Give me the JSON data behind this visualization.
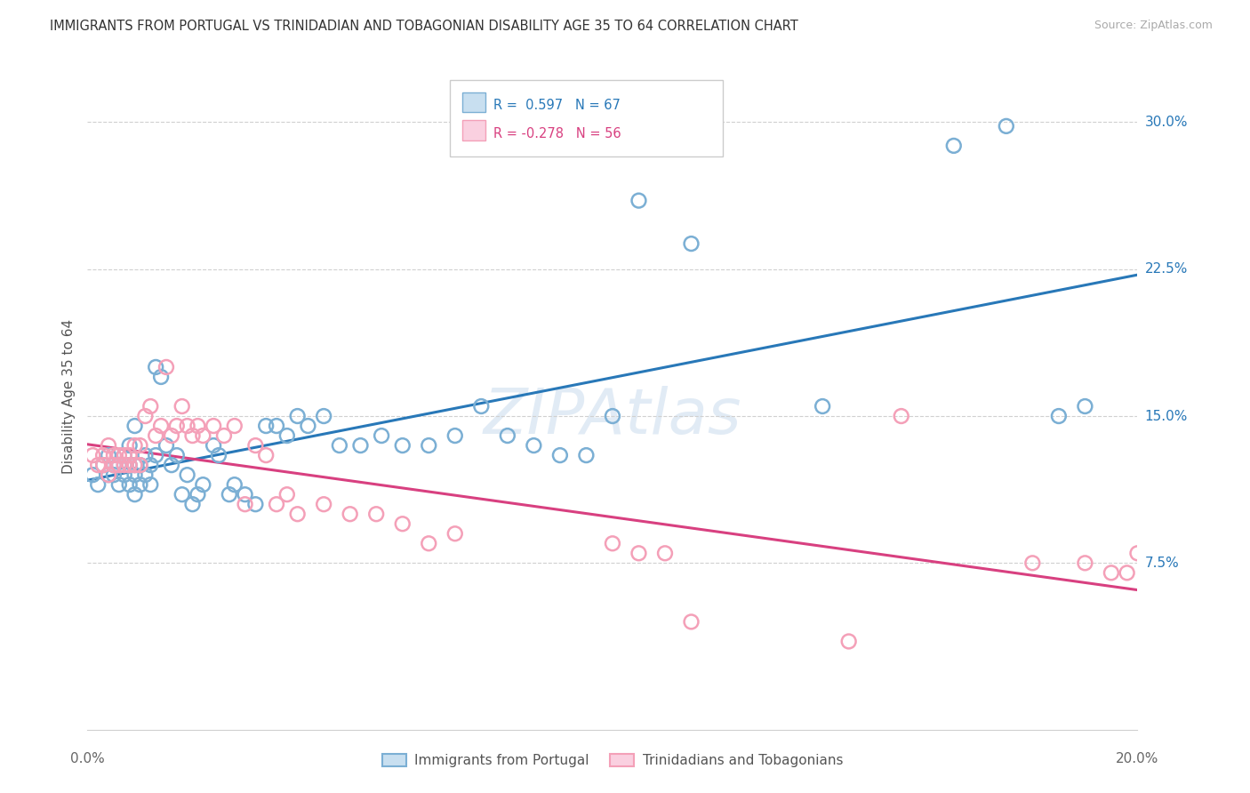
{
  "title": "IMMIGRANTS FROM PORTUGAL VS TRINIDADIAN AND TOBAGONIAN DISABILITY AGE 35 TO 64 CORRELATION CHART",
  "source": "Source: ZipAtlas.com",
  "ylabel": "Disability Age 35 to 64",
  "xlim": [
    0.0,
    0.2
  ],
  "ylim": [
    -0.01,
    0.33
  ],
  "ytick_values": [
    0.075,
    0.15,
    0.225,
    0.3
  ],
  "ytick_labels": [
    "7.5%",
    "15.0%",
    "22.5%",
    "30.0%"
  ],
  "blue_R": "0.597",
  "blue_N": "67",
  "pink_R": "-0.278",
  "pink_N": "56",
  "blue_label": "Immigrants from Portugal",
  "pink_label": "Trinidadians and Tobagonians",
  "blue_dot_color": "#7bafd4",
  "pink_dot_color": "#f4a0b8",
  "blue_line_color": "#2878b8",
  "pink_line_color": "#d84080",
  "legend_blue_fill": "#c8dff0",
  "legend_pink_fill": "#fad0e0",
  "grid_color": "#d0d0d0",
  "background_color": "#ffffff",
  "watermark": "ZIPAtlas",
  "blue_x": [
    0.001,
    0.002,
    0.003,
    0.004,
    0.004,
    0.005,
    0.005,
    0.006,
    0.006,
    0.007,
    0.007,
    0.007,
    0.008,
    0.008,
    0.008,
    0.009,
    0.009,
    0.009,
    0.009,
    0.01,
    0.01,
    0.011,
    0.011,
    0.012,
    0.012,
    0.013,
    0.013,
    0.014,
    0.015,
    0.016,
    0.017,
    0.018,
    0.019,
    0.02,
    0.021,
    0.022,
    0.024,
    0.025,
    0.027,
    0.028,
    0.03,
    0.032,
    0.034,
    0.036,
    0.038,
    0.04,
    0.042,
    0.045,
    0.048,
    0.052,
    0.056,
    0.06,
    0.065,
    0.07,
    0.075,
    0.08,
    0.085,
    0.09,
    0.095,
    0.1,
    0.105,
    0.115,
    0.14,
    0.165,
    0.175,
    0.185,
    0.19
  ],
  "blue_y": [
    0.12,
    0.115,
    0.125,
    0.12,
    0.13,
    0.12,
    0.125,
    0.115,
    0.125,
    0.12,
    0.125,
    0.13,
    0.115,
    0.125,
    0.135,
    0.11,
    0.12,
    0.125,
    0.145,
    0.115,
    0.125,
    0.12,
    0.13,
    0.115,
    0.125,
    0.13,
    0.175,
    0.17,
    0.135,
    0.125,
    0.13,
    0.11,
    0.12,
    0.105,
    0.11,
    0.115,
    0.135,
    0.13,
    0.11,
    0.115,
    0.11,
    0.105,
    0.145,
    0.145,
    0.14,
    0.15,
    0.145,
    0.15,
    0.135,
    0.135,
    0.14,
    0.135,
    0.135,
    0.14,
    0.155,
    0.14,
    0.135,
    0.13,
    0.13,
    0.15,
    0.26,
    0.238,
    0.155,
    0.288,
    0.298,
    0.15,
    0.155
  ],
  "pink_x": [
    0.001,
    0.002,
    0.003,
    0.003,
    0.004,
    0.004,
    0.005,
    0.005,
    0.006,
    0.006,
    0.007,
    0.007,
    0.008,
    0.008,
    0.009,
    0.009,
    0.01,
    0.01,
    0.011,
    0.012,
    0.013,
    0.014,
    0.015,
    0.016,
    0.017,
    0.018,
    0.019,
    0.02,
    0.021,
    0.022,
    0.024,
    0.026,
    0.028,
    0.03,
    0.032,
    0.034,
    0.036,
    0.038,
    0.04,
    0.045,
    0.05,
    0.055,
    0.06,
    0.065,
    0.07,
    0.1,
    0.105,
    0.11,
    0.115,
    0.145,
    0.155,
    0.18,
    0.19,
    0.195,
    0.198,
    0.2
  ],
  "pink_y": [
    0.13,
    0.125,
    0.125,
    0.13,
    0.12,
    0.135,
    0.125,
    0.13,
    0.125,
    0.13,
    0.125,
    0.13,
    0.125,
    0.13,
    0.125,
    0.135,
    0.125,
    0.135,
    0.15,
    0.155,
    0.14,
    0.145,
    0.175,
    0.14,
    0.145,
    0.155,
    0.145,
    0.14,
    0.145,
    0.14,
    0.145,
    0.14,
    0.145,
    0.105,
    0.135,
    0.13,
    0.105,
    0.11,
    0.1,
    0.105,
    0.1,
    0.1,
    0.095,
    0.085,
    0.09,
    0.085,
    0.08,
    0.08,
    0.045,
    0.035,
    0.15,
    0.075,
    0.075,
    0.07,
    0.07,
    0.08
  ]
}
